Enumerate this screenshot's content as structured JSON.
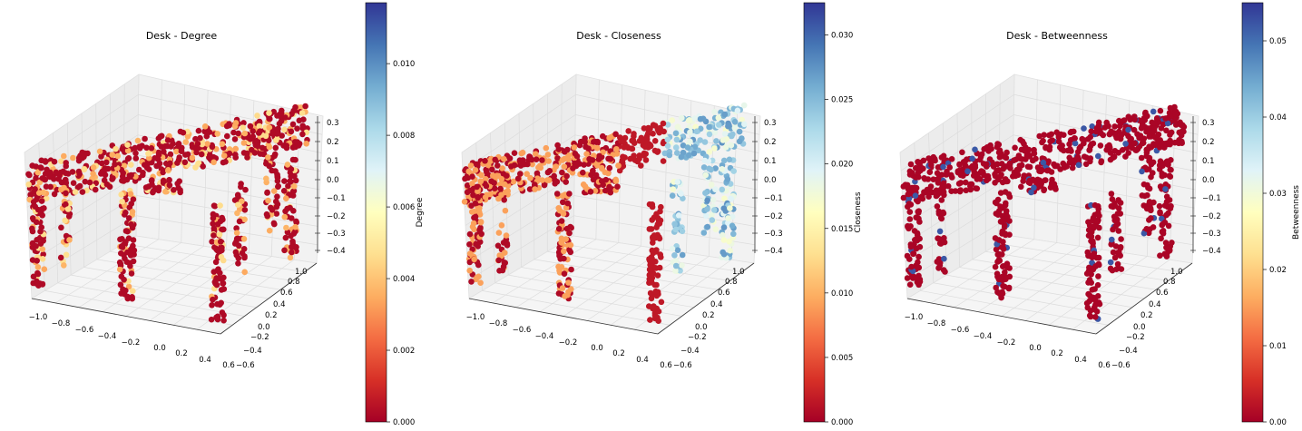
{
  "chart_data": [
    {
      "type": "scatter",
      "title": "Desk - Degree",
      "colorbar": {
        "label": "Degree",
        "range": [
          0.0,
          0.0117
        ],
        "ticks": [
          "0.000",
          "0.002",
          "0.004",
          "0.006",
          "0.008",
          "0.010"
        ],
        "colormap": "RdYlBu"
      },
      "x_ticks": [
        "−1.0",
        "−0.8",
        "−0.6",
        "−0.4",
        "−0.2",
        "0.0",
        "0.2",
        "0.4",
        "0.6"
      ],
      "y_ticks": [
        "−0.6",
        "−0.4",
        "−0.2",
        "0.0",
        "0.2",
        "0.4",
        "0.6",
        "0.8",
        "1.0"
      ],
      "z_ticks": [
        "−0.4",
        "−0.3",
        "−0.2",
        "−0.1",
        "0.0",
        "0.1",
        "0.2",
        "0.3"
      ],
      "xlim": [
        -1.0,
        0.6
      ],
      "ylim": [
        -0.6,
        1.0
      ],
      "zlim": [
        -0.4,
        0.3
      ],
      "grid": true
    },
    {
      "type": "scatter",
      "title": "Desk - Closeness",
      "colorbar": {
        "label": "Closeness",
        "range": [
          0.0,
          0.0325
        ],
        "ticks": [
          "0.000",
          "0.005",
          "0.010",
          "0.015",
          "0.020",
          "0.025",
          "0.030"
        ],
        "colormap": "RdYlBu"
      },
      "x_ticks": [
        "−1.0",
        "−0.8",
        "−0.6",
        "−0.4",
        "−0.2",
        "0.0",
        "0.2",
        "0.4",
        "0.6"
      ],
      "y_ticks": [
        "−0.6",
        "−0.4",
        "−0.2",
        "0.0",
        "0.2",
        "0.4",
        "0.6",
        "0.8",
        "1.0"
      ],
      "z_ticks": [
        "−0.4",
        "−0.3",
        "−0.2",
        "−0.1",
        "0.0",
        "0.1",
        "0.2",
        "0.3"
      ],
      "xlim": [
        -1.0,
        0.6
      ],
      "ylim": [
        -0.6,
        1.0
      ],
      "zlim": [
        -0.4,
        0.3
      ],
      "grid": true
    },
    {
      "type": "scatter",
      "title": "Desk - Betweenness",
      "colorbar": {
        "label": "Betweenness",
        "range": [
          0.0,
          0.055
        ],
        "ticks": [
          "0.00",
          "0.01",
          "0.02",
          "0.03",
          "0.04",
          "0.05"
        ],
        "colormap": "RdYlBu"
      },
      "x_ticks": [
        "−1.0",
        "−0.8",
        "−0.6",
        "−0.4",
        "−0.2",
        "0.0",
        "0.2",
        "0.4",
        "0.6"
      ],
      "y_ticks": [
        "−0.6",
        "−0.4",
        "−0.2",
        "0.0",
        "0.2",
        "0.4",
        "0.6",
        "0.8",
        "1.0"
      ],
      "z_ticks": [
        "−0.4",
        "−0.3",
        "−0.2",
        "−0.1",
        "0.0",
        "0.1",
        "0.2",
        "0.3"
      ],
      "xlim": [
        -1.0,
        0.6
      ],
      "ylim": [
        -0.6,
        1.0
      ],
      "zlim": [
        -0.4,
        0.3
      ],
      "grid": true
    }
  ]
}
